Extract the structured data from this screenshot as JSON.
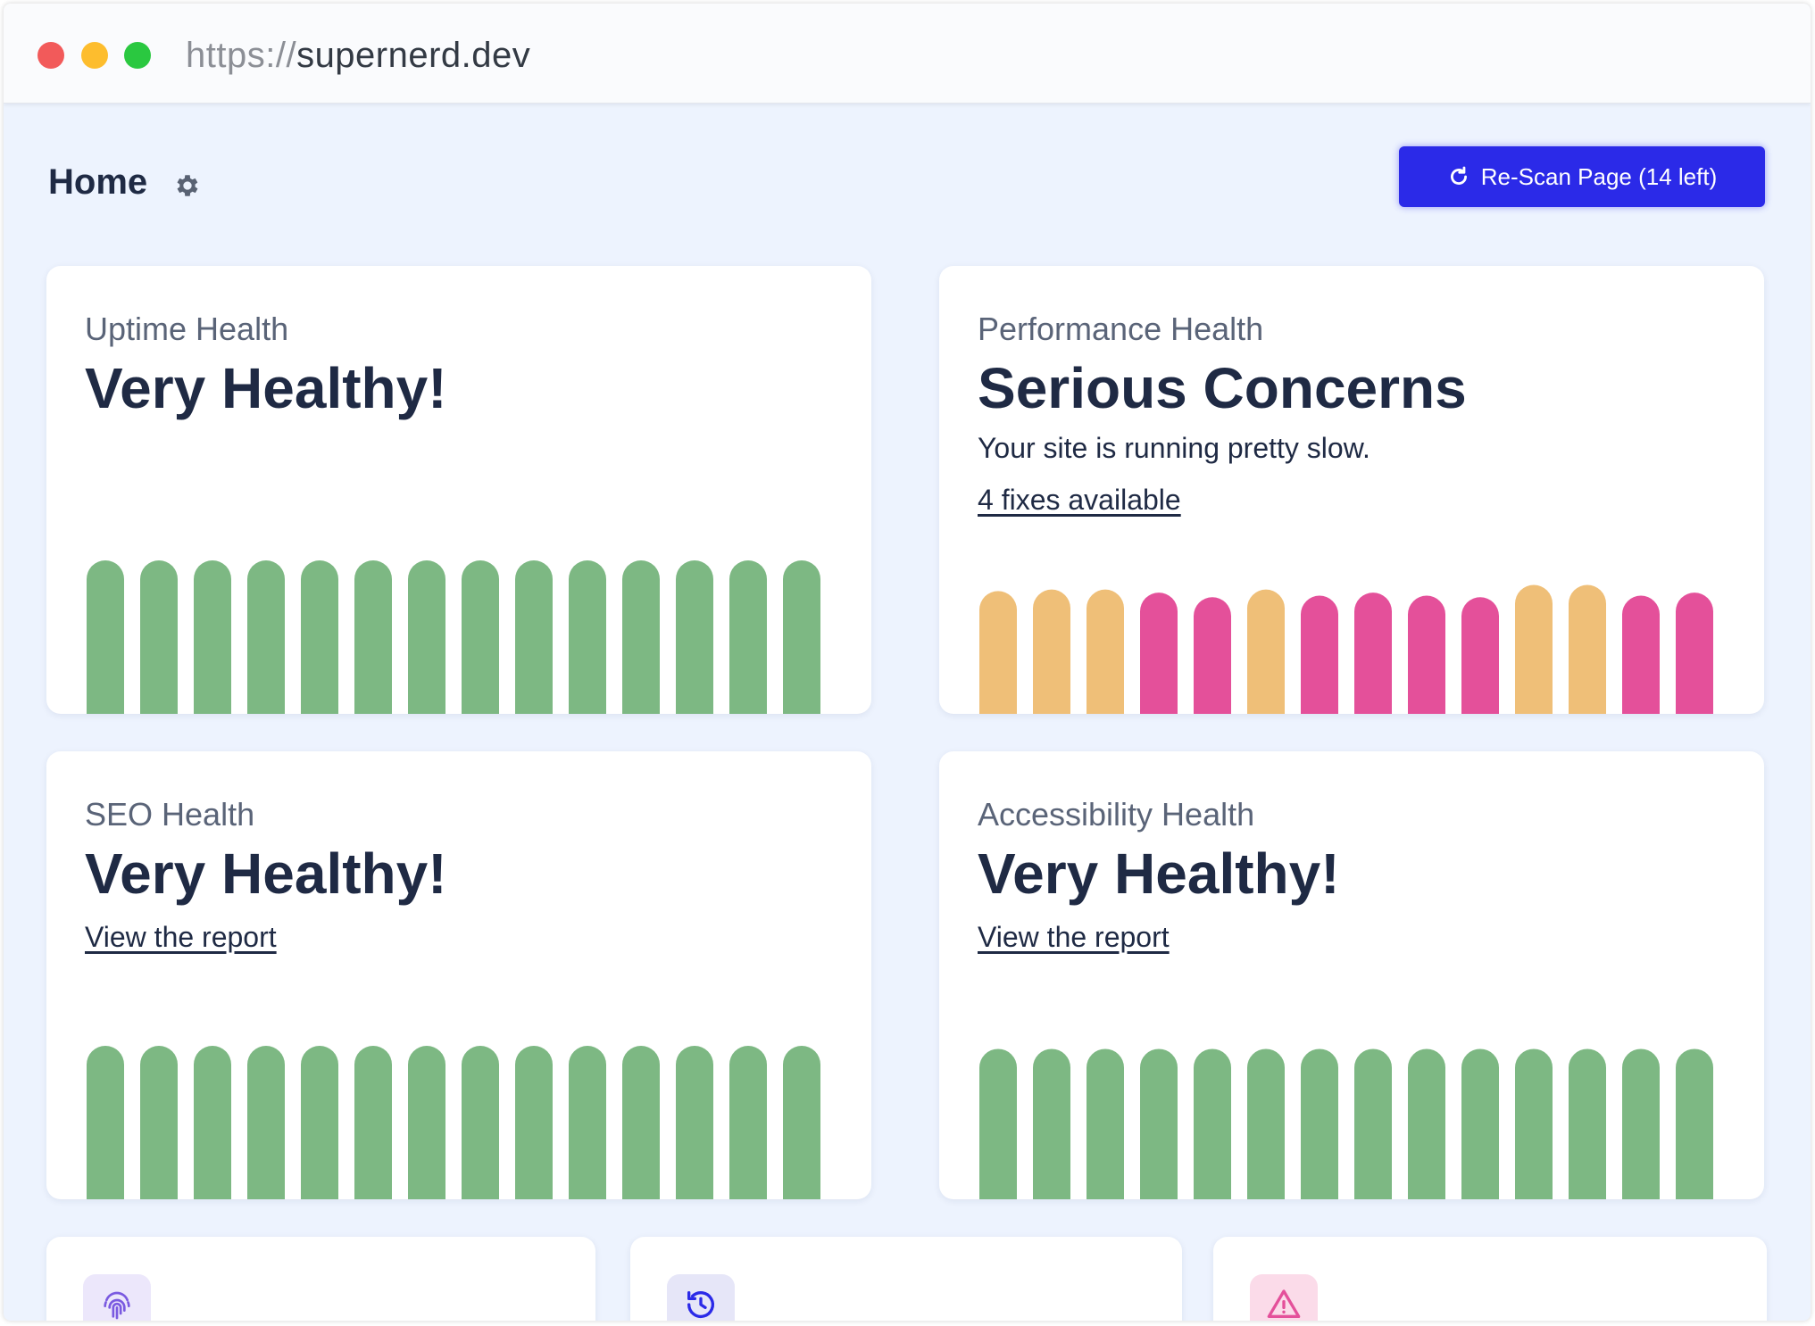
{
  "browser": {
    "url_scheme": "https://",
    "url_host": "supernerd.dev"
  },
  "header": {
    "title": "Home",
    "settings_icon": "gear-icon",
    "rescan_label": "Re-Scan Page (14 left)",
    "rescan_icon": "refresh-icon"
  },
  "colors": {
    "accent": "#2b2ae8",
    "good": "#7db883",
    "warning": "#efbf78",
    "bad": "#e4509a",
    "background": "#edf3fe"
  },
  "cards": [
    {
      "label": "Uptime Health",
      "headline": "Very Healthy!",
      "bars": [
        {
          "level": 1.0,
          "status": "good"
        },
        {
          "level": 1.0,
          "status": "good"
        },
        {
          "level": 1.0,
          "status": "good"
        },
        {
          "level": 1.0,
          "status": "good"
        },
        {
          "level": 1.0,
          "status": "good"
        },
        {
          "level": 1.0,
          "status": "good"
        },
        {
          "level": 1.0,
          "status": "good"
        },
        {
          "level": 1.0,
          "status": "good"
        },
        {
          "level": 1.0,
          "status": "good"
        },
        {
          "level": 1.0,
          "status": "good"
        },
        {
          "level": 1.0,
          "status": "good"
        },
        {
          "level": 1.0,
          "status": "good"
        },
        {
          "level": 1.0,
          "status": "good"
        },
        {
          "level": 1.0,
          "status": "good"
        }
      ]
    },
    {
      "label": "Performance Health",
      "headline": "Serious Concerns",
      "description": "Your site is running pretty slow.",
      "link": "4 fixes available",
      "bars": [
        {
          "level": 0.8,
          "status": "warning"
        },
        {
          "level": 0.81,
          "status": "warning"
        },
        {
          "level": 0.81,
          "status": "warning"
        },
        {
          "level": 0.79,
          "status": "bad"
        },
        {
          "level": 0.76,
          "status": "bad"
        },
        {
          "level": 0.81,
          "status": "warning"
        },
        {
          "level": 0.77,
          "status": "bad"
        },
        {
          "level": 0.79,
          "status": "bad"
        },
        {
          "level": 0.77,
          "status": "bad"
        },
        {
          "level": 0.76,
          "status": "bad"
        },
        {
          "level": 0.84,
          "status": "warning"
        },
        {
          "level": 0.84,
          "status": "warning"
        },
        {
          "level": 0.77,
          "status": "bad"
        },
        {
          "level": 0.79,
          "status": "bad"
        }
      ]
    },
    {
      "label": "SEO Health",
      "headline": "Very Healthy!",
      "link": "View the report",
      "bars": [
        {
          "level": 1.0,
          "status": "good"
        },
        {
          "level": 1.0,
          "status": "good"
        },
        {
          "level": 1.0,
          "status": "good"
        },
        {
          "level": 1.0,
          "status": "good"
        },
        {
          "level": 1.0,
          "status": "good"
        },
        {
          "level": 1.0,
          "status": "good"
        },
        {
          "level": 1.0,
          "status": "good"
        },
        {
          "level": 1.0,
          "status": "good"
        },
        {
          "level": 1.0,
          "status": "good"
        },
        {
          "level": 1.0,
          "status": "good"
        },
        {
          "level": 1.0,
          "status": "good"
        },
        {
          "level": 1.0,
          "status": "good"
        },
        {
          "level": 1.0,
          "status": "good"
        },
        {
          "level": 1.0,
          "status": "good"
        }
      ]
    },
    {
      "label": "Accessibility Health",
      "headline": "Very Healthy!",
      "link": "View the report",
      "bars": [
        {
          "level": 0.98,
          "status": "good"
        },
        {
          "level": 0.98,
          "status": "good"
        },
        {
          "level": 0.98,
          "status": "good"
        },
        {
          "level": 0.98,
          "status": "good"
        },
        {
          "level": 0.98,
          "status": "good"
        },
        {
          "level": 0.98,
          "status": "good"
        },
        {
          "level": 0.98,
          "status": "good"
        },
        {
          "level": 0.98,
          "status": "good"
        },
        {
          "level": 0.98,
          "status": "good"
        },
        {
          "level": 0.98,
          "status": "good"
        },
        {
          "level": 0.98,
          "status": "good"
        },
        {
          "level": 0.98,
          "status": "good"
        },
        {
          "level": 0.98,
          "status": "good"
        },
        {
          "level": 0.98,
          "status": "good"
        }
      ]
    }
  ],
  "bottom_cards": [
    {
      "icon": "fingerprint-icon"
    },
    {
      "icon": "history-icon"
    },
    {
      "icon": "warning-triangle-icon"
    }
  ]
}
